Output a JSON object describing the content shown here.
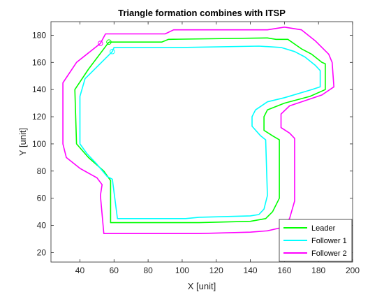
{
  "chart_data": {
    "type": "line",
    "title": "Triangle formation combines with ITSP",
    "xlabel": "X [unit]",
    "ylabel": "Y [unit]",
    "xlim": [
      23,
      200
    ],
    "ylim": [
      13,
      190
    ],
    "xticks": [
      40,
      60,
      80,
      100,
      120,
      140,
      160,
      180,
      200
    ],
    "yticks": [
      20,
      40,
      60,
      80,
      100,
      120,
      140,
      160,
      180
    ],
    "grid": false,
    "legend_position": "bottom-right",
    "series": [
      {
        "name": "Leader",
        "color": "#00ff00",
        "start_marker": [
          57,
          175
        ],
        "points": [
          [
            57,
            175
          ],
          [
            88,
            175
          ],
          [
            92,
            177
          ],
          [
            150,
            178
          ],
          [
            155,
            177
          ],
          [
            162,
            177
          ],
          [
            170,
            170
          ],
          [
            176,
            166
          ],
          [
            182,
            160
          ],
          [
            184,
            159
          ],
          [
            184,
            140
          ],
          [
            175,
            135
          ],
          [
            160,
            130
          ],
          [
            150,
            125
          ],
          [
            148,
            120
          ],
          [
            148,
            110
          ],
          [
            153,
            106
          ],
          [
            157,
            103
          ],
          [
            157,
            60
          ],
          [
            153,
            50
          ],
          [
            149,
            45
          ],
          [
            140,
            43
          ],
          [
            110,
            42
          ],
          [
            100,
            42
          ],
          [
            58,
            42
          ],
          [
            58,
            73
          ],
          [
            54,
            80
          ],
          [
            45,
            90
          ],
          [
            38,
            100
          ],
          [
            37,
            140
          ],
          [
            45,
            155
          ],
          [
            57,
            175
          ]
        ]
      },
      {
        "name": "Follower 1",
        "color": "#00ffff",
        "start_marker": [
          59,
          168
        ],
        "points": [
          [
            59,
            168
          ],
          [
            60,
            171
          ],
          [
            100,
            171
          ],
          [
            145,
            172
          ],
          [
            158,
            171
          ],
          [
            166,
            168
          ],
          [
            172,
            164
          ],
          [
            178,
            158
          ],
          [
            181,
            154
          ],
          [
            181,
            142
          ],
          [
            176,
            140
          ],
          [
            160,
            134
          ],
          [
            150,
            131
          ],
          [
            143,
            125
          ],
          [
            141,
            120
          ],
          [
            141,
            113
          ],
          [
            146,
            106
          ],
          [
            149,
            103
          ],
          [
            150,
            62
          ],
          [
            148,
            52
          ],
          [
            145,
            48
          ],
          [
            140,
            47
          ],
          [
            110,
            46
          ],
          [
            102,
            45
          ],
          [
            62,
            45
          ],
          [
            59,
            74
          ],
          [
            56,
            76
          ],
          [
            50,
            85
          ],
          [
            44,
            93
          ],
          [
            40,
            100
          ],
          [
            40,
            135
          ],
          [
            43,
            148
          ],
          [
            59,
            168
          ]
        ]
      },
      {
        "name": "Follower 2",
        "color": "#ff00ff",
        "start_marker": [
          52,
          174
        ],
        "points": [
          [
            52,
            174
          ],
          [
            55,
            181
          ],
          [
            90,
            181
          ],
          [
            95,
            184
          ],
          [
            150,
            184
          ],
          [
            160,
            186
          ],
          [
            170,
            184
          ],
          [
            178,
            176
          ],
          [
            186,
            166
          ],
          [
            188,
            160
          ],
          [
            189,
            142
          ],
          [
            182,
            136
          ],
          [
            170,
            131
          ],
          [
            163,
            128
          ],
          [
            158,
            122
          ],
          [
            158,
            112
          ],
          [
            163,
            108
          ],
          [
            166,
            104
          ],
          [
            166,
            58
          ],
          [
            163,
            45
          ],
          [
            157,
            38
          ],
          [
            150,
            36
          ],
          [
            140,
            35
          ],
          [
            110,
            34
          ],
          [
            100,
            34
          ],
          [
            54,
            34
          ],
          [
            52,
            62
          ],
          [
            53,
            70
          ],
          [
            50,
            75
          ],
          [
            40,
            82
          ],
          [
            32,
            90
          ],
          [
            30,
            100
          ],
          [
            30,
            145
          ],
          [
            38,
            160
          ],
          [
            52,
            174
          ]
        ]
      }
    ]
  }
}
